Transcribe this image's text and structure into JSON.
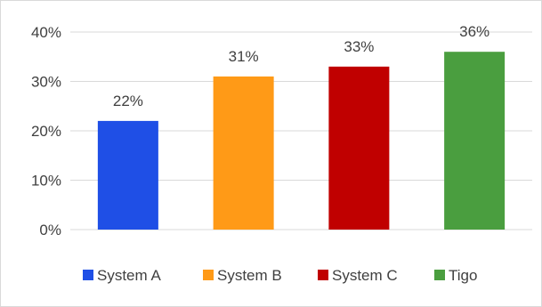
{
  "chart_data": {
    "type": "bar",
    "categories": [
      "System A",
      "System B",
      "System C",
      "Tigo"
    ],
    "values": [
      22,
      31,
      33,
      36
    ],
    "data_labels": [
      "22%",
      "31%",
      "33%",
      "36%"
    ],
    "colors": [
      "#1f4fe6",
      "#ff9a17",
      "#c00000",
      "#4a9e3f"
    ],
    "ylim": [
      0,
      40
    ],
    "yticks": [
      0,
      10,
      20,
      30,
      40
    ],
    "ytick_labels": [
      "0%",
      "10%",
      "20%",
      "30%",
      "40%"
    ],
    "grid": true,
    "legend": {
      "position": "bottom",
      "entries": [
        "System A",
        "System B",
        "System C",
        "Tigo"
      ]
    }
  }
}
